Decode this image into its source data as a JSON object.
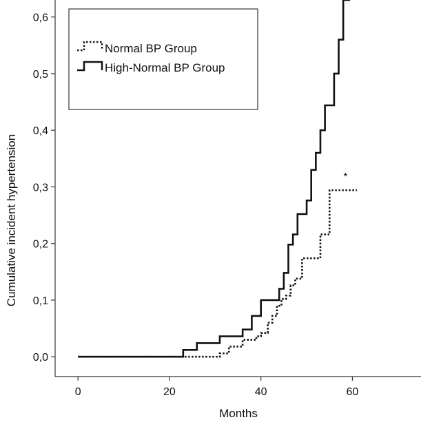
{
  "chart_data": {
    "type": "line",
    "title": "",
    "xlabel": "Months",
    "ylabel": "Cumulative incident hypertension",
    "xlim": [
      -5,
      75
    ],
    "ylim": [
      -0.035,
      0.63
    ],
    "x_ticks": [
      0,
      20,
      40,
      60
    ],
    "x_tick_labels": [
      "0",
      "20",
      "40",
      "60"
    ],
    "y_ticks": [
      0.0,
      0.1,
      0.2,
      0.3,
      0.4,
      0.5,
      0.6
    ],
    "y_tick_labels": [
      "0,0",
      "0,1",
      "0,2",
      "0,3",
      "0,4",
      "0,5",
      "0,6"
    ],
    "grid": false,
    "legend_position": "top-left",
    "step": true,
    "annotation": {
      "text": "*",
      "x": 58.5,
      "y": 0.32
    },
    "series": [
      {
        "name": "Normal BP Group",
        "style": "dotted",
        "color": "#111111",
        "x": [
          0,
          23,
          31,
          33,
          36,
          39,
          40,
          41.5,
          42.5,
          43.5,
          44.5,
          45.5,
          46.5,
          47.5,
          49,
          51,
          53,
          55,
          61
        ],
        "y": [
          0,
          0,
          0.006,
          0.018,
          0.03,
          0.036,
          0.042,
          0.06,
          0.072,
          0.09,
          0.102,
          0.108,
          0.126,
          0.138,
          0.174,
          0.174,
          0.216,
          0.294,
          0.294
        ]
      },
      {
        "name": "High-Normal BP Group",
        "style": "solid",
        "color": "#111111",
        "x": [
          0,
          23,
          26,
          31,
          36,
          38,
          40,
          43,
          44,
          45,
          46,
          47,
          48,
          50,
          51,
          52,
          53,
          54,
          56,
          57,
          58,
          59.5
        ],
        "y": [
          0,
          0.012,
          0.024,
          0.036,
          0.048,
          0.072,
          0.1,
          0.1,
          0.12,
          0.148,
          0.198,
          0.216,
          0.252,
          0.276,
          0.33,
          0.36,
          0.4,
          0.444,
          0.5,
          0.56,
          0.63,
          0.63
        ]
      }
    ]
  }
}
